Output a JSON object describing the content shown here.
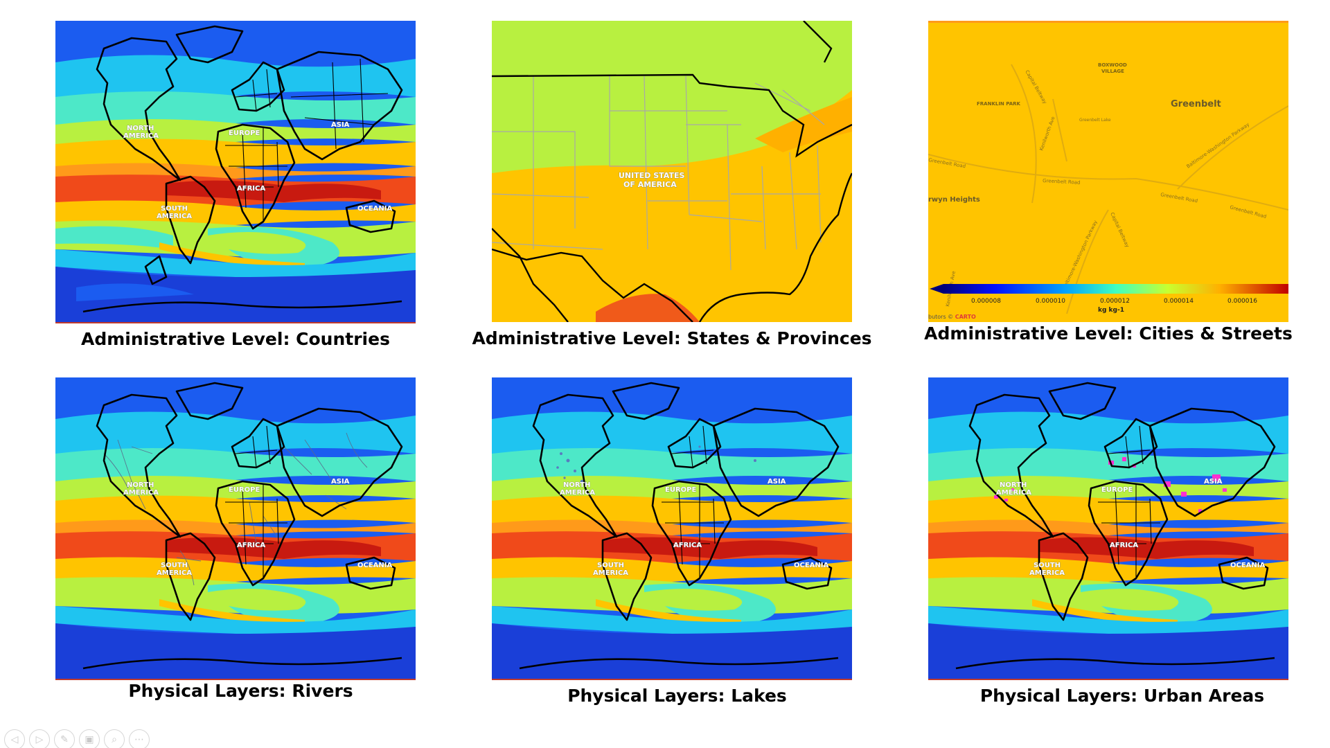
{
  "panels": [
    {
      "id": "countries",
      "caption": "Administrative Level: Countries",
      "labels": [
        "NORTH",
        "AMERICA",
        "EUROPE",
        "ASIA",
        "AFRICA",
        "SOUTH",
        "AMERICA",
        "OCEANIA"
      ]
    },
    {
      "id": "states",
      "caption": "Administrative Level: States & Provinces",
      "labels": [
        "UNITED STATES",
        "OF AMERICA"
      ]
    },
    {
      "id": "cities",
      "caption": "Administrative Level: Cities & Streets",
      "place_labels": [
        "BOXWOOD",
        "VILLAGE",
        "FRANKLIN PARK",
        "Greenbelt",
        "Greenbelt Lake",
        "rwyn Heights"
      ],
      "street_labels": [
        "Capital Beltway",
        "Kenilworth Ave",
        "Baltimore-Washington Parkway",
        "Greenbelt Road",
        "Greenbelt Road",
        "Greenbelt Road",
        "Greenbelt Road",
        "Capital Beltway",
        "Baltimore-Washington Parkway",
        "Kenilworth Ave"
      ],
      "colorbar": {
        "ticks": [
          "0.000008",
          "0.000010",
          "0.000012",
          "0.000014",
          "0.000016"
        ],
        "unit": "kg kg-1",
        "attribution_prefix": "butors © ",
        "attribution_brand": "CARTO"
      }
    },
    {
      "id": "rivers",
      "caption": "Physical Layers: Rivers",
      "labels": [
        "NORTH",
        "AMERICA",
        "EUROPE",
        "ASIA",
        "AFRICA",
        "SOUTH",
        "AMERICA",
        "OCEANIA"
      ]
    },
    {
      "id": "lakes",
      "caption": "Physical Layers: Lakes",
      "labels": [
        "NORTH",
        "AMERICA",
        "EUROPE",
        "ASIA",
        "AFRICA",
        "SOUTH",
        "AMERICA",
        "OCEANIA"
      ]
    },
    {
      "id": "urban",
      "caption": "Physical Layers: Urban Areas",
      "labels": [
        "NORTH",
        "AMERICA",
        "EUROPE",
        "ASIA",
        "AFRICA",
        "SOUTH",
        "AMERICA",
        "OCEANIA"
      ]
    }
  ],
  "toolbar": {
    "icons": [
      "previous-slide-icon",
      "next-slide-icon",
      "pen-icon",
      "slides-grid-icon",
      "zoom-icon",
      "more-options-icon"
    ],
    "glyphs": [
      "◁",
      "▷",
      "✎",
      "▣",
      "⌕",
      "⋯"
    ]
  },
  "colors": {
    "band_deep_blue": "#1a3fd8",
    "band_blue": "#1b5cf0",
    "band_cyan": "#1fc4f0",
    "band_aqua": "#4de8c8",
    "band_lime": "#b8f040",
    "band_yellow": "#ffc400",
    "band_orange": "#ff9a1a",
    "band_red": "#f04a1a",
    "band_dark_red": "#c81a10",
    "urban_highlight": "#ff30d0",
    "carto_red": "#e03a3a"
  }
}
